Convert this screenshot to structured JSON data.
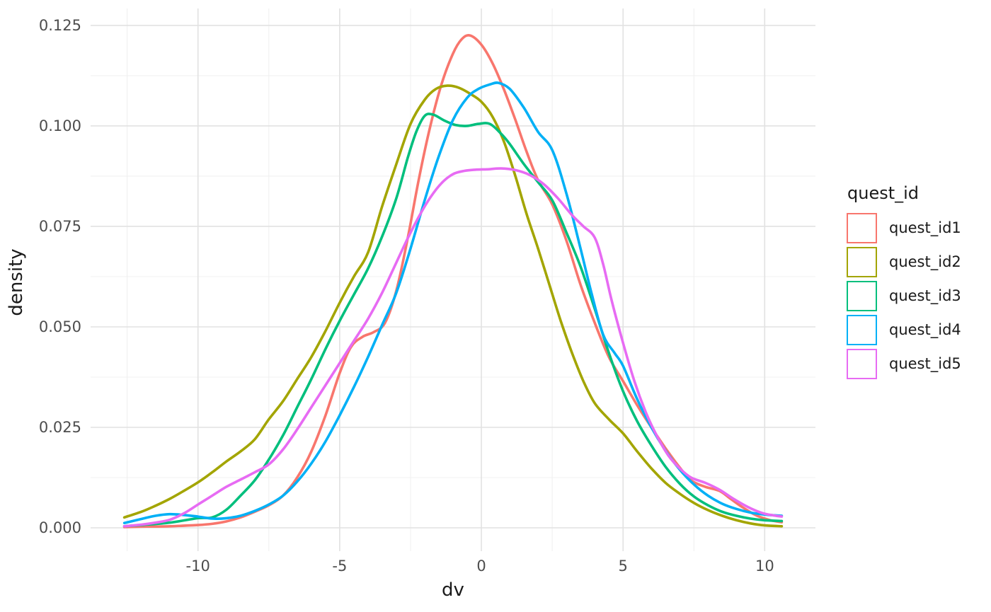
{
  "chart_data": {
    "type": "line",
    "subtype": "kernel-density",
    "title": "",
    "xlabel": "dv",
    "ylabel": "density",
    "x_domain": [
      -13.79,
      11.79
    ],
    "y_domain": [
      -0.0058,
      0.1292
    ],
    "grid": {
      "show": true,
      "major_color": "#E2E2E2",
      "minor_color": "#F0F0F0"
    },
    "background": "#FFFFFF",
    "x_ticks": {
      "values": [
        -10,
        -5,
        0,
        5,
        10
      ],
      "labels": [
        "-10",
        "-5",
        "0",
        "5",
        "10"
      ]
    },
    "x_minor": [
      -12.5,
      -7.5,
      -2.5,
      2.5,
      7.5
    ],
    "y_ticks": {
      "values": [
        0,
        0.025,
        0.05,
        0.075,
        0.1,
        0.125
      ],
      "labels": [
        "0.000",
        "0.025",
        "0.050",
        "0.075",
        "0.100",
        "0.125"
      ]
    },
    "y_minor": [
      0.0125,
      0.0375,
      0.0625,
      0.0875,
      0.1125
    ],
    "tick_color": "#4D4D4D",
    "title_color": "#1A1A1A",
    "legend": {
      "title": "quest_id",
      "position": "right"
    },
    "series": [
      {
        "name": "quest_id1",
        "color": "#F8766D",
        "points": [
          [
            -12.6,
            0.0002
          ],
          [
            -12,
            0.0003
          ],
          [
            -11,
            0.0004
          ],
          [
            -10,
            0.0007
          ],
          [
            -9.5,
            0.001
          ],
          [
            -9,
            0.0016
          ],
          [
            -8.5,
            0.0026
          ],
          [
            -8,
            0.004
          ],
          [
            -7.5,
            0.0056
          ],
          [
            -7,
            0.008
          ],
          [
            -6.5,
            0.0125
          ],
          [
            -6,
            0.019
          ],
          [
            -5.5,
            0.028
          ],
          [
            -5,
            0.0385
          ],
          [
            -4.6,
            0.045
          ],
          [
            -4.2,
            0.0475
          ],
          [
            -3.8,
            0.0487
          ],
          [
            -3.4,
            0.051
          ],
          [
            -3,
            0.059
          ],
          [
            -2.6,
            0.072
          ],
          [
            -2.2,
            0.087
          ],
          [
            -1.8,
            0.1
          ],
          [
            -1.4,
            0.1105
          ],
          [
            -1,
            0.118
          ],
          [
            -0.7,
            0.1215
          ],
          [
            -0.4,
            0.1225
          ],
          [
            0,
            0.1202
          ],
          [
            0.4,
            0.1155
          ],
          [
            0.8,
            0.109
          ],
          [
            1.2,
            0.1015
          ],
          [
            1.6,
            0.0935
          ],
          [
            2,
            0.0865
          ],
          [
            2.5,
            0.0805
          ],
          [
            3,
            0.0715
          ],
          [
            3.5,
            0.0605
          ],
          [
            4,
            0.051
          ],
          [
            4.5,
            0.0425
          ],
          [
            5,
            0.0365
          ],
          [
            5.5,
            0.0305
          ],
          [
            6,
            0.025
          ],
          [
            6.5,
            0.0198
          ],
          [
            7,
            0.015
          ],
          [
            7.4,
            0.0118
          ],
          [
            7.9,
            0.0102
          ],
          [
            8.4,
            0.0092
          ],
          [
            8.8,
            0.0072
          ],
          [
            9.2,
            0.0052
          ],
          [
            9.7,
            0.0031
          ],
          [
            10.2,
            0.0019
          ],
          [
            10.6,
            0.0014
          ]
        ]
      },
      {
        "name": "quest_id2",
        "color": "#A3A500",
        "points": [
          [
            -12.6,
            0.0026
          ],
          [
            -12,
            0.004
          ],
          [
            -11.5,
            0.0055
          ],
          [
            -11,
            0.0072
          ],
          [
            -10.5,
            0.0092
          ],
          [
            -10,
            0.0113
          ],
          [
            -9.5,
            0.0138
          ],
          [
            -9,
            0.0165
          ],
          [
            -8.5,
            0.019
          ],
          [
            -8,
            0.022
          ],
          [
            -7.5,
            0.027
          ],
          [
            -7,
            0.0315
          ],
          [
            -6.5,
            0.037
          ],
          [
            -6,
            0.0425
          ],
          [
            -5.5,
            0.049
          ],
          [
            -5,
            0.056
          ],
          [
            -4.5,
            0.0625
          ],
          [
            -4,
            0.0685
          ],
          [
            -3.5,
            0.08
          ],
          [
            -3,
            0.0905
          ],
          [
            -2.5,
            0.1005
          ],
          [
            -2,
            0.1065
          ],
          [
            -1.6,
            0.1092
          ],
          [
            -1.2,
            0.11
          ],
          [
            -0.8,
            0.1095
          ],
          [
            -0.4,
            0.108
          ],
          [
            0,
            0.106
          ],
          [
            0.4,
            0.1022
          ],
          [
            0.8,
            0.096
          ],
          [
            1.2,
            0.0875
          ],
          [
            1.6,
            0.078
          ],
          [
            2,
            0.0695
          ],
          [
            2.4,
            0.0605
          ],
          [
            2.8,
            0.0515
          ],
          [
            3.2,
            0.0435
          ],
          [
            3.6,
            0.0365
          ],
          [
            4,
            0.031
          ],
          [
            4.5,
            0.027
          ],
          [
            5,
            0.0235
          ],
          [
            5.5,
            0.019
          ],
          [
            6,
            0.0148
          ],
          [
            6.5,
            0.0112
          ],
          [
            7,
            0.0085
          ],
          [
            7.5,
            0.0062
          ],
          [
            8,
            0.0044
          ],
          [
            8.5,
            0.003
          ],
          [
            9,
            0.0019
          ],
          [
            9.5,
            0.0011
          ],
          [
            10,
            0.0006
          ],
          [
            10.6,
            0.0004
          ]
        ]
      },
      {
        "name": "quest_id3",
        "color": "#00BF7D",
        "points": [
          [
            -12.6,
            0.0004
          ],
          [
            -12,
            0.0007
          ],
          [
            -11,
            0.0013
          ],
          [
            -10,
            0.0024
          ],
          [
            -9.5,
            0.0026
          ],
          [
            -9,
            0.0045
          ],
          [
            -8.5,
            0.008
          ],
          [
            -8,
            0.0118
          ],
          [
            -7.5,
            0.017
          ],
          [
            -7,
            0.023
          ],
          [
            -6.5,
            0.03
          ],
          [
            -6,
            0.037
          ],
          [
            -5.5,
            0.0445
          ],
          [
            -5,
            0.0515
          ],
          [
            -4.5,
            0.058
          ],
          [
            -4,
            0.0645
          ],
          [
            -3.5,
            0.0725
          ],
          [
            -3,
            0.082
          ],
          [
            -2.6,
            0.092
          ],
          [
            -2.3,
            0.0985
          ],
          [
            -2,
            0.1025
          ],
          [
            -1.7,
            0.1028
          ],
          [
            -1.3,
            0.1013
          ],
          [
            -0.9,
            0.1002
          ],
          [
            -0.5,
            0.1
          ],
          [
            -0.1,
            0.1005
          ],
          [
            0.3,
            0.1005
          ],
          [
            0.7,
            0.098
          ],
          [
            1,
            0.0955
          ],
          [
            1.5,
            0.0905
          ],
          [
            2,
            0.086
          ],
          [
            2.5,
            0.0815
          ],
          [
            3,
            0.0735
          ],
          [
            3.5,
            0.065
          ],
          [
            4,
            0.0545
          ],
          [
            4.5,
            0.0435
          ],
          [
            5,
            0.034
          ],
          [
            5.5,
            0.0265
          ],
          [
            6,
            0.0205
          ],
          [
            6.5,
            0.0152
          ],
          [
            7,
            0.011
          ],
          [
            7.5,
            0.0078
          ],
          [
            8,
            0.0056
          ],
          [
            8.5,
            0.004
          ],
          [
            9,
            0.003
          ],
          [
            9.5,
            0.0023
          ],
          [
            10,
            0.0019
          ],
          [
            10.6,
            0.0017
          ]
        ]
      },
      {
        "name": "quest_id4",
        "color": "#00B0F6",
        "points": [
          [
            -12.6,
            0.0012
          ],
          [
            -12,
            0.0022
          ],
          [
            -11.5,
            0.003
          ],
          [
            -11,
            0.0034
          ],
          [
            -10.5,
            0.0032
          ],
          [
            -10,
            0.0028
          ],
          [
            -9.5,
            0.0023
          ],
          [
            -9,
            0.0024
          ],
          [
            -8.5,
            0.003
          ],
          [
            -8,
            0.0042
          ],
          [
            -7.5,
            0.0058
          ],
          [
            -7,
            0.008
          ],
          [
            -6.5,
            0.0115
          ],
          [
            -6,
            0.016
          ],
          [
            -5.5,
            0.0215
          ],
          [
            -5,
            0.028
          ],
          [
            -4.5,
            0.035
          ],
          [
            -4,
            0.0425
          ],
          [
            -3.5,
            0.0505
          ],
          [
            -3,
            0.0585
          ],
          [
            -2.5,
            0.0695
          ],
          [
            -2,
            0.0815
          ],
          [
            -1.5,
            0.0925
          ],
          [
            -1,
            0.1015
          ],
          [
            -0.5,
            0.107
          ],
          [
            -0.1,
            0.1092
          ],
          [
            0.3,
            0.1103
          ],
          [
            0.6,
            0.1107
          ],
          [
            1,
            0.1092
          ],
          [
            1.5,
            0.1045
          ],
          [
            2,
            0.0985
          ],
          [
            2.5,
            0.094
          ],
          [
            3,
            0.0832
          ],
          [
            3.5,
            0.0695
          ],
          [
            3.9,
            0.058
          ],
          [
            4.3,
            0.048
          ],
          [
            4.7,
            0.0435
          ],
          [
            5,
            0.0403
          ],
          [
            5.5,
            0.032
          ],
          [
            6,
            0.025
          ],
          [
            6.5,
            0.0192
          ],
          [
            7,
            0.0145
          ],
          [
            7.5,
            0.0108
          ],
          [
            8,
            0.008
          ],
          [
            8.5,
            0.006
          ],
          [
            9,
            0.0047
          ],
          [
            9.5,
            0.0038
          ],
          [
            10,
            0.0033
          ],
          [
            10.6,
            0.003
          ]
        ]
      },
      {
        "name": "quest_id5",
        "color": "#E76BF3",
        "points": [
          [
            -12.6,
            0.0004
          ],
          [
            -12,
            0.0008
          ],
          [
            -11.5,
            0.0013
          ],
          [
            -11,
            0.002
          ],
          [
            -10.5,
            0.0036
          ],
          [
            -10,
            0.0058
          ],
          [
            -9.5,
            0.008
          ],
          [
            -9,
            0.0102
          ],
          [
            -8.5,
            0.012
          ],
          [
            -8,
            0.0138
          ],
          [
            -7.5,
            0.0158
          ],
          [
            -7,
            0.0195
          ],
          [
            -6.5,
            0.0245
          ],
          [
            -6,
            0.03
          ],
          [
            -5.5,
            0.0355
          ],
          [
            -5,
            0.041
          ],
          [
            -4.5,
            0.0465
          ],
          [
            -4,
            0.052
          ],
          [
            -3.5,
            0.0585
          ],
          [
            -3,
            0.066
          ],
          [
            -2.6,
            0.072
          ],
          [
            -2.2,
            0.0775
          ],
          [
            -1.8,
            0.0822
          ],
          [
            -1.4,
            0.0858
          ],
          [
            -1,
            0.088
          ],
          [
            -0.6,
            0.0888
          ],
          [
            -0.2,
            0.0891
          ],
          [
            0.2,
            0.0892
          ],
          [
            0.7,
            0.0894
          ],
          [
            1.2,
            0.089
          ],
          [
            1.7,
            0.0878
          ],
          [
            2.2,
            0.0855
          ],
          [
            2.7,
            0.082
          ],
          [
            3.2,
            0.0778
          ],
          [
            3.6,
            0.075
          ],
          [
            4,
            0.0722
          ],
          [
            4.3,
            0.0655
          ],
          [
            4.6,
            0.0565
          ],
          [
            5,
            0.046
          ],
          [
            5.4,
            0.0365
          ],
          [
            5.8,
            0.0288
          ],
          [
            6.2,
            0.0228
          ],
          [
            6.6,
            0.018
          ],
          [
            7,
            0.0148
          ],
          [
            7.4,
            0.0125
          ],
          [
            7.9,
            0.0112
          ],
          [
            8.4,
            0.0095
          ],
          [
            8.9,
            0.0072
          ],
          [
            9.4,
            0.0052
          ],
          [
            9.9,
            0.0037
          ],
          [
            10.3,
            0.0031
          ],
          [
            10.6,
            0.0028
          ]
        ]
      }
    ]
  }
}
